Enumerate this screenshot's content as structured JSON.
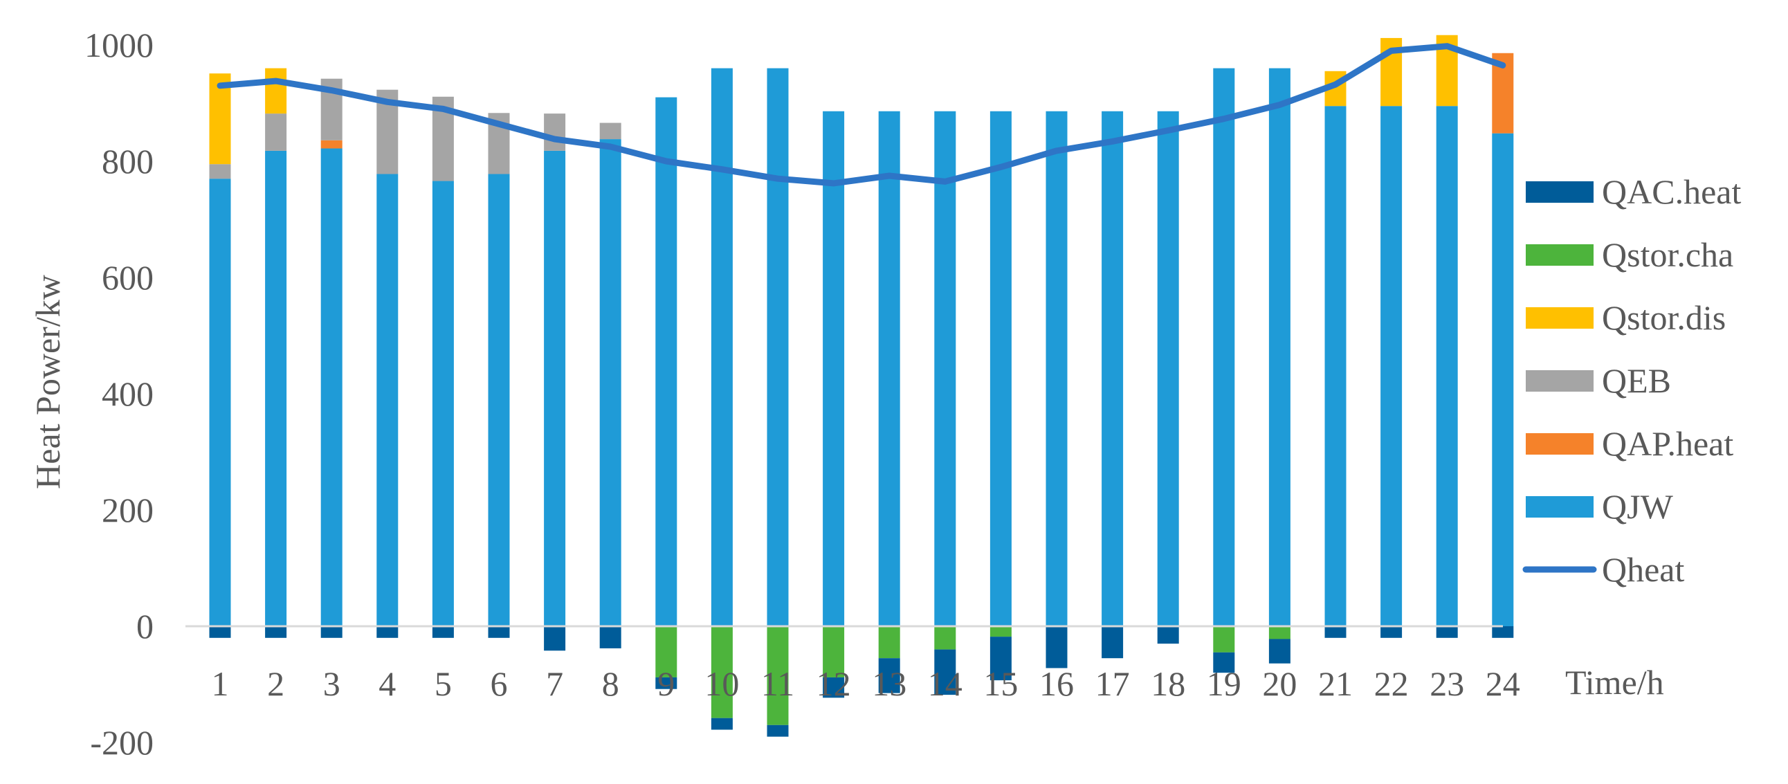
{
  "chart_data": {
    "type": "bar",
    "stacked": true,
    "title": "",
    "xlabel": "Time/h",
    "ylabel": "Heat Power/kw",
    "ylim": [
      -200,
      1000
    ],
    "yticks": [
      -200,
      0,
      200,
      400,
      600,
      800,
      1000
    ],
    "grid": false,
    "legend_position": "right",
    "categories": [
      "1",
      "2",
      "3",
      "4",
      "5",
      "6",
      "7",
      "8",
      "9",
      "10",
      "11",
      "12",
      "13",
      "14",
      "15",
      "16",
      "17",
      "18",
      "19",
      "20",
      "21",
      "22",
      "23",
      "24"
    ],
    "series": [
      {
        "name": "QJW",
        "kind": "bar",
        "color": "#1F9BD7",
        "values": [
          770,
          818,
          822,
          778,
          766,
          778,
          818,
          838,
          910,
          960,
          960,
          886,
          886,
          886,
          886,
          886,
          886,
          886,
          960,
          960,
          895,
          895,
          895,
          848
        ]
      },
      {
        "name": "QAP.heat",
        "kind": "bar",
        "color": "#F5822A",
        "values": [
          0,
          0,
          14,
          0,
          0,
          0,
          0,
          0,
          0,
          0,
          0,
          0,
          0,
          0,
          0,
          0,
          0,
          0,
          0,
          0,
          0,
          0,
          0,
          138
        ]
      },
      {
        "name": "QEB",
        "kind": "bar",
        "color": "#A5A5A5",
        "values": [
          25,
          64,
          106,
          145,
          145,
          105,
          64,
          28,
          0,
          0,
          0,
          0,
          0,
          0,
          0,
          0,
          0,
          0,
          0,
          0,
          0,
          0,
          0,
          0
        ]
      },
      {
        "name": "Qstor.dis",
        "kind": "bar",
        "color": "#FFC000",
        "values": [
          156,
          78,
          0,
          0,
          0,
          0,
          0,
          0,
          0,
          0,
          0,
          0,
          0,
          0,
          0,
          0,
          0,
          0,
          0,
          0,
          60,
          117,
          122,
          0
        ]
      },
      {
        "name": "Qstor.cha",
        "kind": "bar",
        "color": "#4DB43C",
        "values": [
          0,
          0,
          0,
          0,
          0,
          0,
          0,
          0,
          -88,
          -158,
          -170,
          -88,
          -55,
          -40,
          -18,
          0,
          0,
          0,
          -45,
          -22,
          0,
          0,
          0,
          0
        ]
      },
      {
        "name": "QAC.heat",
        "kind": "bar",
        "color": "#005C99",
        "values": [
          -20,
          -20,
          -20,
          -20,
          -20,
          -20,
          -42,
          -38,
          -20,
          -20,
          -20,
          -35,
          -60,
          -78,
          -75,
          -72,
          -55,
          -30,
          -35,
          -42,
          -20,
          -20,
          -20,
          -20
        ]
      },
      {
        "name": "Qheat",
        "kind": "line",
        "color": "#2E75C6",
        "values": [
          930,
          938,
          922,
          902,
          890,
          864,
          838,
          825,
          800,
          786,
          770,
          762,
          775,
          765,
          790,
          818,
          834,
          853,
          873,
          897,
          932,
          990,
          998,
          965
        ]
      }
    ],
    "legend_order": [
      "QAC.heat",
      "Qstor.cha",
      "Qstor.dis",
      "QEB",
      "QAP.heat",
      "QJW",
      "Qheat"
    ]
  }
}
